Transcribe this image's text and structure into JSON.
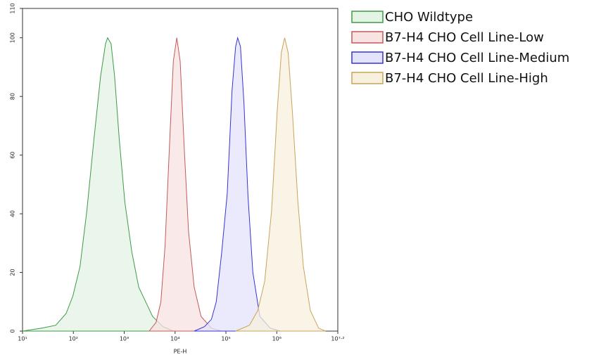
{
  "chart_data": {
    "type": "area",
    "x_label": "PE-H",
    "xscale": "log",
    "xlim": [
      10,
      15848932
    ],
    "ylim": [
      0,
      110
    ],
    "xticks": [
      {
        "value": 10,
        "label": "10¹"
      },
      {
        "value": 100,
        "label": "10²"
      },
      {
        "value": 1000,
        "label": "10³"
      },
      {
        "value": 10000,
        "label": "10⁴"
      },
      {
        "value": 100000,
        "label": "10⁵"
      },
      {
        "value": 1000000,
        "label": "10⁶"
      },
      {
        "value": 15848932,
        "label": "10⁷·²"
      }
    ],
    "yticks": [
      0,
      20,
      40,
      60,
      80,
      100,
      110
    ],
    "legend_position": "outside-right-top",
    "series": [
      {
        "name": "CHO Wildtype",
        "color": "#3f9a46",
        "fill": "#e3f3e4",
        "x": [
          10,
          24,
          45,
          72,
          98,
          135,
          184,
          252,
          344,
          430,
          471,
          551,
          645,
          803,
          1030,
          1410,
          1930,
          2640,
          3610,
          5780,
          9250
        ],
        "values": [
          0,
          1,
          2,
          6,
          12,
          22,
          41,
          65,
          87,
          98,
          100,
          98,
          87,
          65,
          44,
          27,
          15,
          10,
          5,
          1.5,
          0
        ]
      },
      {
        "name": "B7-H4 CHO Cell Line-Low",
        "color": "#c25a5a",
        "fill": "#f8e2e2",
        "x": [
          3090,
          4230,
          5260,
          6350,
          7660,
          9250,
          10800,
          12600,
          15300,
          18400,
          23700,
          32400,
          51800,
          82800
        ],
        "values": [
          0,
          3,
          10,
          29,
          61,
          92,
          100,
          92,
          61,
          34,
          15,
          5,
          1,
          0
        ]
      },
      {
        "name": "B7-H4 CHO Cell Line-Medium",
        "color": "#3535d6",
        "fill": "#e3e3fb",
        "x": [
          23700,
          37800,
          51800,
          64600,
          82800,
          106000,
          132000,
          155000,
          170000,
          193000,
          226000,
          272000,
          339000,
          464000,
          743000,
          1190000
        ],
        "values": [
          0,
          1.5,
          4,
          10,
          27,
          47,
          82,
          97,
          100,
          97,
          78,
          46,
          20,
          5,
          1,
          0
        ]
      },
      {
        "name": "B7-H4 CHO Cell Line-High",
        "color": "#c9a45a",
        "fill": "#f7f0dc",
        "x": [
          155000,
          290000,
          423000,
          578000,
          791000,
          1020000,
          1230000,
          1430000,
          1670000,
          2020000,
          2600000,
          3340000,
          4570000,
          6660000,
          9100000
        ],
        "values": [
          0,
          2,
          7,
          17,
          41,
          75,
          95,
          100,
          95,
          75,
          44,
          22,
          7,
          1,
          0
        ]
      }
    ]
  }
}
